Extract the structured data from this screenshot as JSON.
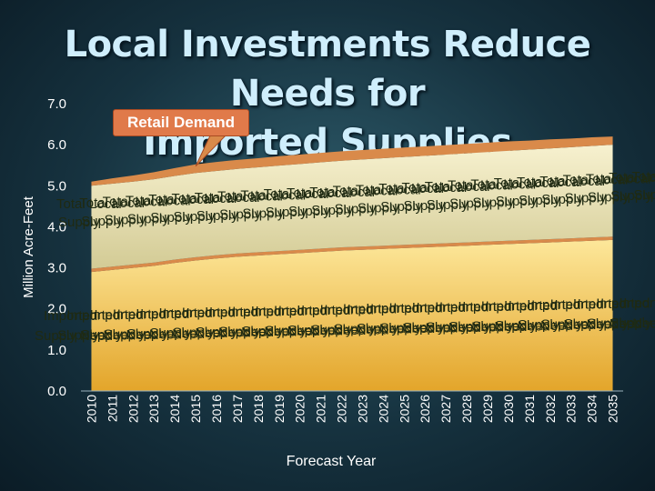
{
  "title_lines": [
    "Local Investments Reduce Needs for",
    "Imported Supplies"
  ],
  "callout": "Retail Demand",
  "chart_data": {
    "type": "area",
    "title": "Local Investments Reduce Needs for Imported Supplies",
    "xlabel": "Forecast Year",
    "ylabel": "Million Acre-Feet",
    "ylim": [
      0,
      7
    ],
    "yticks": [
      "0.0",
      "1.0",
      "2.0",
      "3.0",
      "4.0",
      "5.0",
      "6.0",
      "7.0"
    ],
    "categories": [
      "2010",
      "2011",
      "2012",
      "2013",
      "2014",
      "2015",
      "2016",
      "2017",
      "2018",
      "2019",
      "2020",
      "2021",
      "2022",
      "2023",
      "2024",
      "2025",
      "2026",
      "2027",
      "2028",
      "2029",
      "2030",
      "2031",
      "2032",
      "2033",
      "2034",
      "2035"
    ],
    "series": [
      {
        "name": "Imported Supply Need",
        "values": [
          2.9,
          2.95,
          3.0,
          3.05,
          3.12,
          3.18,
          3.23,
          3.27,
          3.3,
          3.33,
          3.36,
          3.39,
          3.42,
          3.44,
          3.46,
          3.48,
          3.5,
          3.52,
          3.54,
          3.56,
          3.58,
          3.6,
          3.62,
          3.64,
          3.66,
          3.68
        ]
      },
      {
        "name": "Total Local Supply",
        "values": [
          2.1,
          2.1,
          2.1,
          2.11,
          2.12,
          2.13,
          2.13,
          2.14,
          2.15,
          2.16,
          2.17,
          2.18,
          2.19,
          2.2,
          2.21,
          2.22,
          2.23,
          2.24,
          2.25,
          2.26,
          2.27,
          2.28,
          2.29,
          2.3,
          2.31,
          2.32
        ]
      },
      {
        "name": "Retail Demand",
        "values": [
          5.1,
          5.18,
          5.25,
          5.33,
          5.43,
          5.52,
          5.58,
          5.63,
          5.67,
          5.72,
          5.76,
          5.8,
          5.84,
          5.87,
          5.9,
          5.93,
          5.96,
          5.99,
          6.02,
          6.05,
          6.08,
          6.1,
          6.13,
          6.15,
          6.18,
          6.2
        ]
      }
    ],
    "area_labels": {
      "local": [
        "Total Local",
        "Supply"
      ],
      "imported": [
        "Imported",
        "Supply Need"
      ]
    },
    "colors": {
      "import_top": "#fde79a",
      "import_bottom": "#e3a52a",
      "band": "#d98a4a",
      "local_top": "#f7f1cf",
      "local_bottom": "#d3cb95",
      "label": "#1f2a12",
      "axis_text": "#ffffff"
    }
  }
}
